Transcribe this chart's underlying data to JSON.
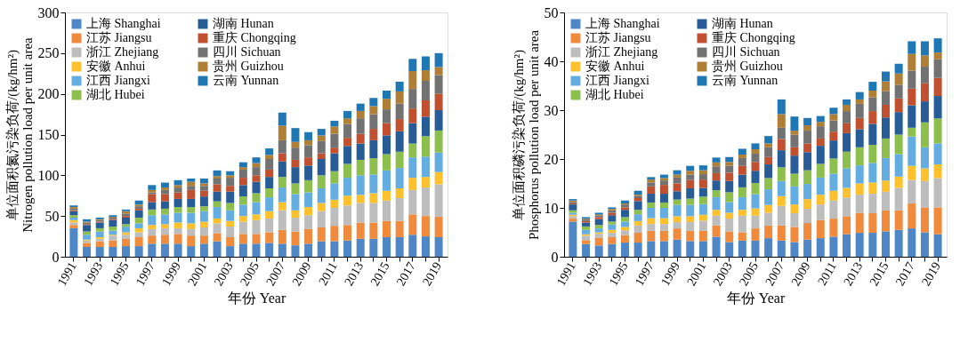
{
  "chart_data": [
    {
      "type": "bar",
      "stacked": true,
      "xlabel": "年份 Year",
      "ylabel": "单位面积氮污染负荷/(kg/hm²)\nNitrogen pollution load per unit area",
      "legend": "top left",
      "ylim": [
        0,
        300
      ],
      "yticks": [
        0,
        50,
        100,
        150,
        200,
        250,
        300
      ],
      "categories": [
        "1991",
        null,
        "1993",
        null,
        "1995",
        null,
        "1997",
        null,
        "1999",
        null,
        "2001",
        null,
        "2003",
        null,
        "2005",
        null,
        "2007",
        null,
        "2009",
        null,
        "2011",
        null,
        "2013",
        null,
        "2015",
        null,
        "2017",
        null,
        "2019"
      ],
      "series": [
        {
          "name": "上海 Shanghai",
          "color": "#4f86c6",
          "values": [
            35,
            12,
            12,
            12,
            13,
            13,
            16,
            16,
            16,
            13,
            16,
            19,
            13,
            16,
            16,
            17,
            16,
            14,
            16,
            19,
            19,
            20,
            22,
            22,
            24,
            24,
            27,
            25,
            24
          ]
        },
        {
          "name": "江苏 Jiangsu",
          "color": "#f08a3c",
          "values": [
            4,
            5,
            7,
            8,
            9,
            11,
            10,
            11,
            12,
            13,
            10,
            10,
            11,
            12,
            12,
            13,
            17,
            17,
            18,
            17,
            19,
            19,
            20,
            20,
            20,
            20,
            25,
            25,
            25
          ]
        },
        {
          "name": "浙江 Zhejiang",
          "color": "#bdbdbd",
          "values": [
            3,
            3,
            3,
            6,
            5,
            6,
            8,
            8,
            7,
            8,
            10,
            12,
            13,
            15,
            17,
            17,
            24,
            17,
            17,
            20,
            22,
            24,
            24,
            24,
            25,
            28,
            30,
            35,
            40
          ]
        },
        {
          "name": "安徽 Anhui",
          "color": "#fdc12e",
          "values": [
            3,
            1,
            2,
            1,
            3,
            5,
            5,
            5,
            7,
            7,
            7,
            6,
            7,
            7,
            7,
            9,
            10,
            9,
            10,
            10,
            10,
            12,
            10,
            12,
            12,
            12,
            15,
            13,
            15
          ]
        },
        {
          "name": "江西 Jiangxi",
          "color": "#64ade0",
          "values": [
            3,
            6,
            7,
            5,
            7,
            6,
            12,
            12,
            12,
            13,
            13,
            14,
            13,
            14,
            15,
            17,
            18,
            20,
            18,
            18,
            20,
            22,
            24,
            23,
            25,
            25,
            25,
            25,
            24
          ]
        },
        {
          "name": "湖北 Hubei",
          "color": "#8dbf4e",
          "values": [
            3,
            4,
            4,
            5,
            3,
            7,
            7,
            7,
            7,
            7,
            6,
            7,
            9,
            10,
            11,
            11,
            13,
            13,
            15,
            16,
            15,
            17,
            19,
            20,
            20,
            20,
            17,
            25,
            27
          ]
        },
        {
          "name": "湖南 Hunan",
          "color": "#275c96",
          "values": [
            5,
            8,
            7,
            8,
            8,
            9,
            9,
            9,
            10,
            10,
            12,
            12,
            14,
            14,
            14,
            14,
            19,
            20,
            18,
            20,
            22,
            22,
            20,
            22,
            23,
            25,
            25,
            24,
            25
          ]
        },
        {
          "name": "重庆 Chongqing",
          "color": "#c0502f",
          "values": [
            1,
            1,
            1,
            1,
            2,
            2,
            10,
            9,
            8,
            11,
            7,
            9,
            7,
            9,
            8,
            9,
            10,
            9,
            10,
            7,
            7,
            10,
            12,
            14,
            15,
            15,
            18,
            20,
            20
          ]
        },
        {
          "name": "四川 Sichuan",
          "color": "#727272",
          "values": [
            2,
            2,
            2,
            2,
            3,
            3,
            2,
            5,
            6,
            5,
            6,
            7,
            10,
            10,
            10,
            13,
            16,
            15,
            15,
            15,
            17,
            17,
            19,
            18,
            17,
            19,
            24,
            24,
            23
          ]
        },
        {
          "name": "贵州 Guizhou",
          "color": "#b07f36",
          "values": [
            2,
            1,
            1,
            1,
            3,
            2,
            3,
            3,
            3,
            5,
            3,
            3,
            3,
            3,
            5,
            5,
            18,
            7,
            6,
            7,
            9,
            7,
            9,
            10,
            13,
            15,
            22,
            13,
            10
          ]
        },
        {
          "name": "云南 Yunnan",
          "color": "#1f78b4",
          "values": [
            2,
            3,
            2,
            2,
            2,
            5,
            6,
            6,
            6,
            4,
            6,
            7,
            5,
            6,
            7,
            8,
            16,
            17,
            10,
            8,
            7,
            9,
            9,
            10,
            10,
            12,
            15,
            17,
            17
          ]
        }
      ]
    },
    {
      "type": "bar",
      "stacked": true,
      "xlabel": "年份 Year",
      "ylabel": "单位面积磷污染负荷/(kg/hm²)\nPhosphorus pollution load per unit area",
      "legend": "top left",
      "ylim": [
        0,
        50
      ],
      "yticks": [
        0,
        10,
        20,
        30,
        40,
        50
      ],
      "categories": [
        "1991",
        null,
        "1993",
        null,
        "1995",
        null,
        "1997",
        null,
        "1999",
        null,
        "2001",
        null,
        "2003",
        null,
        "2005",
        null,
        "2007",
        null,
        "2009",
        null,
        "2011",
        null,
        "2013",
        null,
        "2015",
        null,
        "2017",
        null,
        "2019"
      ],
      "series": [
        {
          "name": "上海 Shanghai",
          "color": "#4f86c6",
          "values": [
            7.2,
            2.6,
            2.3,
            2.6,
            2.9,
            2.9,
            3.2,
            3.2,
            3.5,
            3.2,
            3.2,
            4.1,
            3.0,
            3.3,
            3.3,
            3.8,
            3.3,
            3.0,
            3.5,
            3.8,
            4.1,
            4.6,
            4.9,
            4.9,
            5.2,
            5.5,
            5.8,
            5.0,
            4.6
          ]
        },
        {
          "name": "江苏 Jiangsu",
          "color": "#f08a3c",
          "values": [
            0.6,
            0.8,
            1.6,
            1.4,
            1.5,
            2.0,
            2.1,
            2.1,
            2.3,
            2.1,
            2.1,
            2.3,
            2.2,
            1.7,
            2.5,
            2.6,
            3.1,
            3.1,
            3.4,
            3.7,
            3.7,
            3.7,
            4.1,
            4.0,
            4.3,
            4.0,
            5.1,
            5.1,
            5.5
          ]
        },
        {
          "name": "浙江 Zhejiang",
          "color": "#bdbdbd",
          "values": [
            0.5,
            0.9,
            0.8,
            0.9,
            1.0,
            1.5,
            1.4,
            1.4,
            1.3,
            1.8,
            2.1,
            2.0,
            2.6,
            3.4,
            2.6,
            2.6,
            4.0,
            2.8,
            2.9,
            3.2,
            3.7,
            3.8,
            3.7,
            4.0,
            3.8,
            4.6,
            4.8,
            5.4,
            6.0
          ]
        },
        {
          "name": "安徽 Anhui",
          "color": "#fdc12e",
          "values": [
            0.3,
            0.3,
            0.3,
            0.6,
            0.7,
            0.9,
            1.2,
            1.2,
            1.2,
            1.2,
            1.2,
            1.2,
            1.2,
            1.2,
            1.5,
            1.6,
            2.0,
            1.8,
            2.0,
            2.0,
            2.0,
            2.0,
            2.3,
            2.3,
            2.3,
            2.3,
            2.9,
            2.6,
            2.8
          ]
        },
        {
          "name": "江西 Jiangxi",
          "color": "#64ade0",
          "values": [
            0.4,
            0.9,
            0.8,
            1.1,
            1.1,
            1.4,
            2.1,
            2.1,
            2.3,
            2.3,
            2.2,
            2.6,
            2.2,
            2.6,
            2.9,
            3.2,
            3.1,
            3.7,
            3.1,
            3.5,
            3.5,
            4.0,
            3.7,
            4.0,
            4.6,
            4.6,
            6.0,
            4.3,
            4.3
          ]
        },
        {
          "name": "湖北 Hubei",
          "color": "#8dbf4e",
          "values": [
            0.5,
            0.7,
            0.7,
            0.6,
            0.9,
            0.9,
            1.1,
            1.1,
            1.1,
            1.3,
            1.5,
            1.4,
            2.0,
            2.0,
            2.3,
            2.3,
            2.8,
            2.6,
            2.8,
            2.8,
            3.1,
            3.4,
            3.7,
            3.7,
            4.0,
            4.0,
            1.8,
            5.1,
            5.1
          ]
        },
        {
          "name": "湖南 Hunan",
          "color": "#275c96",
          "values": [
            1.2,
            0.8,
            1.2,
            1.3,
            1.5,
            1.8,
            1.8,
            1.8,
            1.7,
            2.1,
            1.8,
            2.0,
            2.3,
            2.6,
            2.5,
            2.8,
            3.5,
            3.7,
            3.7,
            3.7,
            3.7,
            3.8,
            3.7,
            4.3,
            4.3,
            4.6,
            4.6,
            4.3,
            4.6
          ]
        },
        {
          "name": "重庆 Chongqing",
          "color": "#c0502f",
          "values": [
            0.2,
            0.3,
            0.4,
            0.5,
            0.5,
            0.6,
            1.5,
            1.8,
            1.6,
            1.7,
            1.7,
            1.5,
            1.7,
            1.8,
            1.8,
            1.5,
            2.3,
            1.7,
            1.8,
            1.5,
            1.8,
            2.0,
            2.3,
            2.6,
            2.6,
            2.8,
            3.4,
            3.7,
            3.7
          ]
        },
        {
          "name": "四川 Sichuan",
          "color": "#727272",
          "values": [
            0.3,
            0.4,
            0.3,
            0.5,
            0.6,
            0.5,
            0.8,
            0.9,
            1.2,
            1.1,
            1.1,
            1.4,
            1.4,
            1.6,
            1.7,
            2.0,
            2.3,
            2.6,
            2.6,
            2.5,
            2.3,
            2.5,
            2.9,
            2.8,
            2.8,
            2.8,
            3.7,
            3.4,
            3.8
          ]
        },
        {
          "name": "贵州 Guizhou",
          "color": "#b07f36",
          "values": [
            0.3,
            0.1,
            0.2,
            0.3,
            0.2,
            0.2,
            0.6,
            0.5,
            0.6,
            0.8,
            0.8,
            0.8,
            0.8,
            0.7,
            0.9,
            0.8,
            2.8,
            0.8,
            1.1,
            0.9,
            1.3,
            1.3,
            0.9,
            1.4,
            2.0,
            2.3,
            3.4,
            2.3,
            1.4
          ]
        },
        {
          "name": "云南 Yunnan",
          "color": "#1f78b4",
          "values": [
            0.3,
            0.3,
            0.4,
            0.3,
            0.6,
            0.8,
            0.5,
            0.7,
            0.9,
            1.0,
            1.0,
            1.0,
            1.0,
            1.2,
            1.2,
            1.5,
            3.0,
            2.9,
            1.5,
            1.2,
            1.3,
            1.1,
            1.5,
            1.8,
            2.0,
            2.0,
            2.6,
            2.9,
            2.9
          ]
        }
      ]
    }
  ]
}
